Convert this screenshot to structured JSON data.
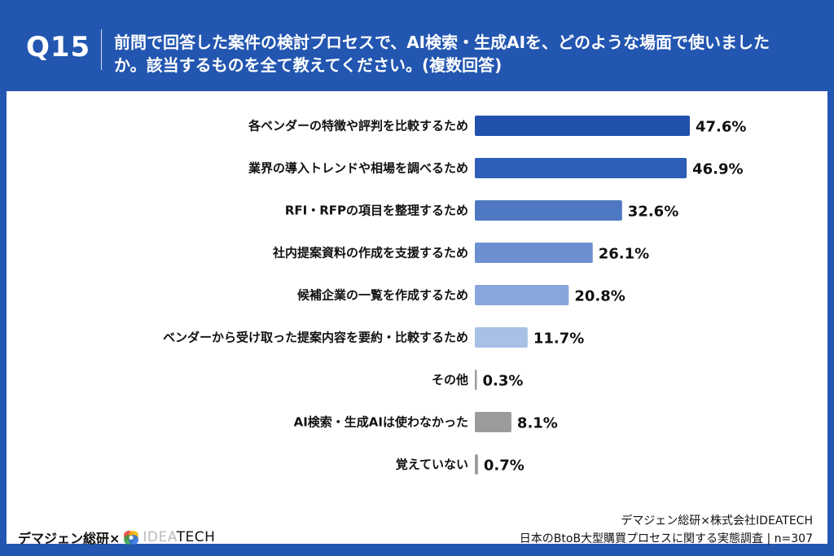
{
  "header": {
    "question_number": "Q15",
    "question_text": "前問で回答した案件の検討プロセスで、AI検索・生成AIを、どのような場面で使いましたか。該当するものを全て教えてください。(複数回答)"
  },
  "chart_data": {
    "type": "bar",
    "orientation": "horizontal",
    "unit": "%",
    "xlim": [
      0,
      50
    ],
    "grid": false,
    "categories": [
      "各ベンダーの特徴や評判を比較するため",
      "業界の導入トレンドや相場を調べるため",
      "RFI・RFPの項目を整理するため",
      "社内提案資料の作成を支援するため",
      "候補企業の一覧を作成するため",
      "ベンダーから受け取った提案内容を要約・比較するため",
      "その他",
      "AI検索・生成AIは使わなかった",
      "覚えていない"
    ],
    "values": [
      47.6,
      46.9,
      32.6,
      26.1,
      20.8,
      11.7,
      0.3,
      8.1,
      0.7
    ],
    "value_labels": [
      "47.6%",
      "46.9%",
      "32.6%",
      "26.1%",
      "20.8%",
      "11.7%",
      "0.3%",
      "8.1%",
      "0.7%"
    ],
    "colors": [
      "#2151ad",
      "#2f5eb8",
      "#4f78c3",
      "#6b8fd0",
      "#88a6db",
      "#a8c0e6",
      "#9b9b9b",
      "#9b9b9b",
      "#9b9b9b"
    ]
  },
  "footer": {
    "brand_left": "デマジェン総研×",
    "logo_text_light": "IDEA",
    "logo_text_dark": "TECH",
    "credit_line1": "デマジェン総研×株式会社IDEATECH",
    "credit_line2": "日本のBtoB大型購買プロセスに関する実態調査 | n=307"
  }
}
